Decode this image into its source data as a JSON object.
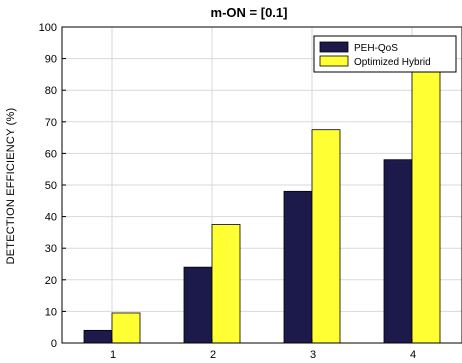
{
  "chart_data": {
    "type": "bar",
    "title": "m-ON = [0.1]",
    "xlabel": "",
    "ylabel": "DETECTION EFFICIENCY (%)",
    "categories": [
      "1",
      "2",
      "3",
      "4"
    ],
    "xlim": [
      0.5,
      4.5
    ],
    "ylim": [
      0,
      100
    ],
    "yticks": [
      0,
      10,
      20,
      30,
      40,
      50,
      60,
      70,
      80,
      90,
      100
    ],
    "grid": true,
    "legend_position": "top-right",
    "series": [
      {
        "name": "PEH-QoS",
        "values": [
          4,
          24,
          48,
          58
        ],
        "color": "#1b1a4b"
      },
      {
        "name": "Optimized Hybrid",
        "values": [
          9.5,
          37.5,
          67.5,
          90
        ],
        "color": "#ffff33"
      }
    ]
  }
}
